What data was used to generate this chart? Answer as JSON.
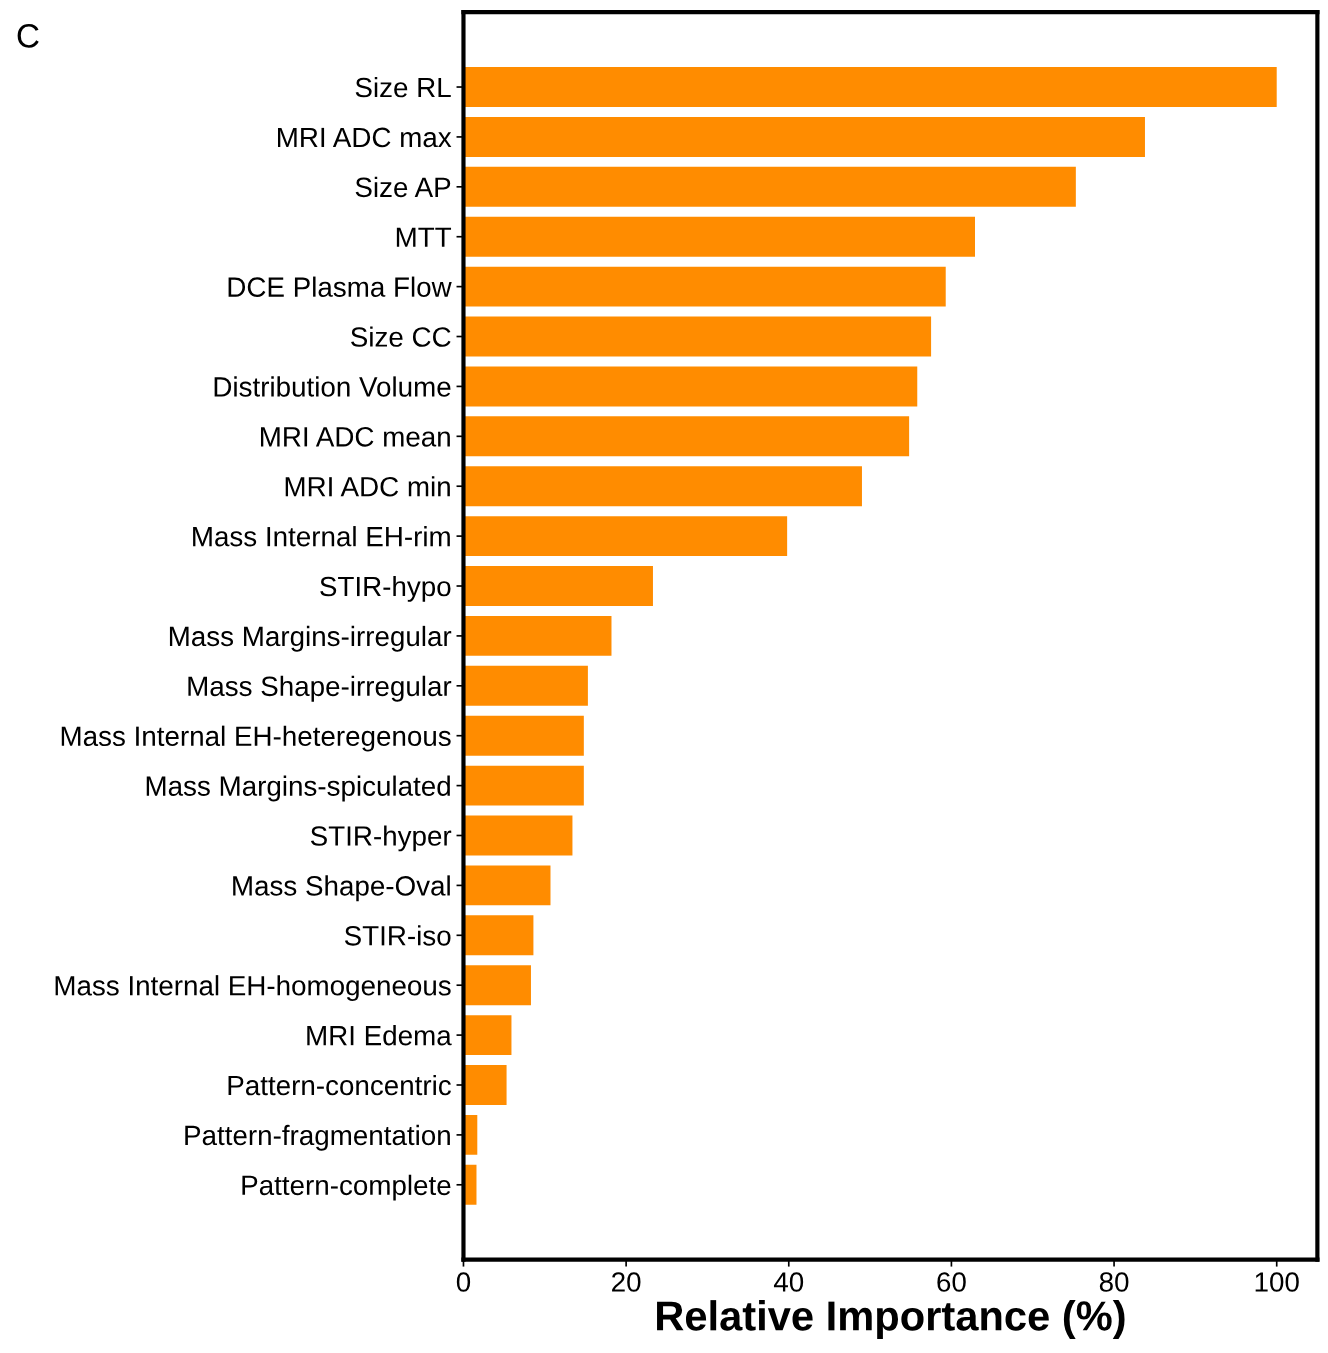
{
  "chart_data": {
    "type": "bar",
    "orientation": "horizontal",
    "xlabel": "Relative Importance (%)",
    "categories": [
      "Size RL",
      "MRI ADC max",
      "Size AP",
      "MTT",
      "DCE Plasma Flow",
      "Size CC",
      "Distribution Volume",
      "MRI ADC mean",
      "MRI ADC min",
      "Mass Internal EH-rim",
      "STIR-hypo",
      "Mass Margins-irregular",
      "Mass Shape-irregular",
      "Mass Internal EH-heteregenous",
      "Mass Margins-spiculated",
      "STIR-hyper",
      "Mass Shape-Oval",
      "STIR-iso",
      "Mass Internal EH-homogeneous",
      "MRI Edema",
      "Pattern-concentric",
      "Pattern-fragmentation",
      "Pattern-complete"
    ],
    "values": [
      100,
      83.8,
      75.3,
      62.9,
      59.3,
      57.5,
      55.8,
      54.8,
      49.0,
      39.8,
      23.3,
      18.2,
      15.3,
      14.8,
      14.8,
      13.4,
      10.7,
      8.6,
      8.3,
      5.9,
      5.3,
      1.7,
      1.6
    ],
    "color": "#ff8c00",
    "xlim": [
      0,
      105
    ],
    "xticks": [
      0,
      20,
      40,
      60,
      80,
      100
    ],
    "grid": false,
    "legend": false,
    "annotations": [
      "C"
    ]
  }
}
